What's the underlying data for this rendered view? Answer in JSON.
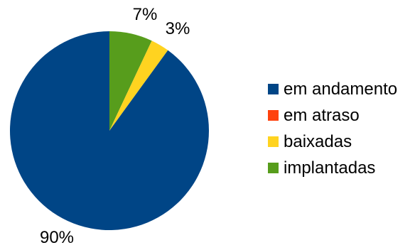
{
  "chart_data": {
    "type": "pie",
    "slices": [
      {
        "name": "em andamento",
        "value": 90,
        "label": "90%",
        "color": "#004586"
      },
      {
        "name": "em atraso",
        "value": 0,
        "label": "",
        "color": "#ff420e"
      },
      {
        "name": "baixadas",
        "value": 3,
        "label": "3%",
        "color": "#ffd320"
      },
      {
        "name": "implantadas",
        "value": 7,
        "label": "7%",
        "color": "#579d1c"
      }
    ],
    "legend": {
      "placement": "right",
      "entries": [
        "em andamento",
        "em atraso",
        "baixadas",
        "implantadas"
      ]
    }
  }
}
